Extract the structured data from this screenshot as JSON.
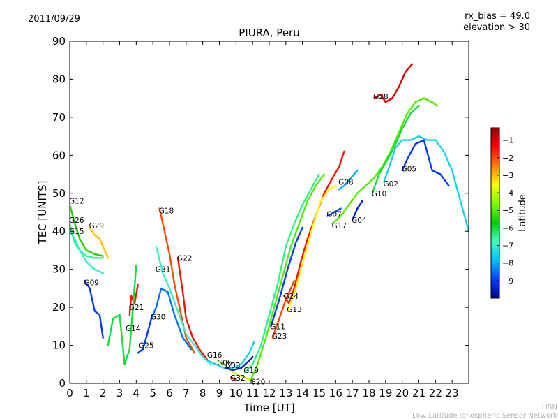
{
  "chart_data": {
    "type": "scatter",
    "title": "PIURA, Peru",
    "date": "2011/09/29",
    "info_lines": [
      "rx_bias = 49.0",
      "elevation > 30"
    ],
    "xlabel": "Time [UT]",
    "ylabel": "TEC [UNITS]",
    "xlim": [
      0,
      24
    ],
    "ylim": [
      0,
      90
    ],
    "xticks": [
      "0",
      "1",
      "2",
      "3",
      "4",
      "5",
      "6",
      "7",
      "8",
      "9",
      "10",
      "11",
      "12",
      "13",
      "14",
      "15",
      "16",
      "17",
      "18",
      "19",
      "20",
      "21",
      "22",
      "23"
    ],
    "yticks": [
      "0",
      "10",
      "20",
      "30",
      "40",
      "50",
      "60",
      "70",
      "80",
      "90"
    ],
    "grid": false,
    "colorbar": {
      "label": "Latitude",
      "min": -10,
      "max": -0.3,
      "ticks": [
        "-1",
        "-2",
        "-3",
        "-4",
        "-5",
        "-6",
        "-7",
        "-8",
        "-9"
      ],
      "colors": [
        "#00008f",
        "#0040ff",
        "#00c0ff",
        "#40ffbf",
        "#00d000",
        "#7fff00",
        "#ffff00",
        "#ff8000",
        "#ff0000",
        "#8f0000"
      ]
    },
    "series": [
      {
        "name": "G12",
        "label_at": [
          0,
          48
        ],
        "lat": -5.5,
        "points": [
          [
            0,
            47
          ],
          [
            0.3,
            42
          ],
          [
            0.6,
            38
          ],
          [
            1,
            35
          ],
          [
            1.5,
            34
          ],
          [
            2,
            33.5
          ]
        ]
      },
      {
        "name": "G26",
        "label_at": [
          0,
          43
        ],
        "lat": -6.5,
        "points": [
          [
            0,
            42
          ],
          [
            0.3,
            37
          ],
          [
            0.6,
            35
          ],
          [
            1,
            33.5
          ],
          [
            1.5,
            33
          ],
          [
            2,
            33
          ]
        ]
      },
      {
        "name": "G15",
        "label_at": [
          0,
          40
        ],
        "lat": -7,
        "points": [
          [
            0,
            40
          ],
          [
            0.3,
            38
          ],
          [
            0.6,
            35
          ],
          [
            1,
            32
          ],
          [
            1.5,
            30
          ],
          [
            2,
            29
          ]
        ]
      },
      {
        "name": "G29",
        "label_at": [
          1.2,
          41.5
        ],
        "lat": -3,
        "points": [
          [
            1.2,
            41
          ],
          [
            1.5,
            39
          ],
          [
            1.8,
            38
          ],
          [
            2,
            36
          ],
          [
            2.2,
            34
          ],
          [
            2.3,
            33
          ]
        ]
      },
      {
        "name": "G09",
        "label_at": [
          0.9,
          26.5
        ],
        "lat": -9,
        "points": [
          [
            0.9,
            27
          ],
          [
            1.2,
            25
          ],
          [
            1.5,
            19
          ],
          [
            1.8,
            18
          ],
          [
            2,
            12
          ]
        ]
      },
      {
        "name": "G18",
        "label_at": [
          5.4,
          45.5
        ],
        "lat": -2,
        "points": [
          [
            5.4,
            46
          ],
          [
            5.7,
            40
          ],
          [
            6,
            34
          ],
          [
            6.3,
            26
          ],
          [
            6.7,
            18
          ],
          [
            7,
            12
          ],
          [
            7.5,
            8
          ]
        ]
      },
      {
        "name": "G22",
        "label_at": [
          6.5,
          33
        ],
        "lat": -1.5,
        "points": [
          [
            6.5,
            33
          ],
          [
            6.8,
            24
          ],
          [
            7,
            17
          ],
          [
            7.4,
            12
          ],
          [
            7.8,
            9
          ],
          [
            8.3,
            6
          ]
        ]
      },
      {
        "name": "G31",
        "label_at": [
          5.2,
          30
        ],
        "lat": -7,
        "points": [
          [
            5.2,
            36
          ],
          [
            5.6,
            29
          ],
          [
            6,
            25
          ],
          [
            6.5,
            19
          ],
          [
            7,
            13
          ],
          [
            7.5,
            10
          ],
          [
            8,
            7
          ],
          [
            8.5,
            5
          ]
        ]
      },
      {
        "name": "G21",
        "label_at": [
          3.6,
          20
        ],
        "lat": -1.5,
        "points": [
          [
            3.6,
            18
          ],
          [
            3.7,
            23
          ],
          [
            3.9,
            21
          ],
          [
            4.1,
            26
          ]
        ]
      },
      {
        "name": "G30",
        "label_at": [
          4.9,
          17.5
        ],
        "lat": -8.5,
        "points": [
          [
            4.9,
            17
          ],
          [
            5.2,
            20
          ],
          [
            5.5,
            25
          ],
          [
            5.9,
            24
          ],
          [
            6.3,
            18
          ],
          [
            6.8,
            12
          ],
          [
            7.3,
            9
          ]
        ]
      },
      {
        "name": "G14",
        "label_at": [
          3.4,
          14.5
        ],
        "lat": -6,
        "points": [
          [
            2.3,
            10
          ],
          [
            2.6,
            17
          ],
          [
            3,
            18
          ],
          [
            3.3,
            5
          ],
          [
            3.6,
            9
          ],
          [
            4,
            31
          ]
        ]
      },
      {
        "name": "G25",
        "label_at": [
          4.2,
          10
        ],
        "lat": -9,
        "points": [
          [
            4.1,
            8
          ],
          [
            4.4,
            9
          ],
          [
            4.6,
            12
          ],
          [
            4.9,
            17
          ]
        ]
      },
      {
        "name": "G16",
        "label_at": [
          8.3,
          7.5
        ],
        "lat": -7.5,
        "points": [
          [
            8.3,
            6
          ],
          [
            8.8,
            5
          ],
          [
            9.3,
            4
          ],
          [
            9.8,
            4
          ],
          [
            10.3,
            5
          ],
          [
            10.8,
            8
          ],
          [
            11.1,
            11
          ]
        ]
      },
      {
        "name": "G06",
        "label_at": [
          8.9,
          5.5
        ],
        "lat": -4,
        "points": [
          [
            8.9,
            6
          ],
          [
            9.3,
            5
          ],
          [
            9.8,
            3
          ],
          [
            10.3,
            2
          ],
          [
            10.8,
            1
          ]
        ]
      },
      {
        "name": "G03",
        "label_at": [
          9.4,
          4.8
        ],
        "lat": -9.5,
        "points": [
          [
            9.4,
            4
          ],
          [
            9.8,
            3.5
          ],
          [
            10.3,
            4
          ],
          [
            10.8,
            6
          ],
          [
            11,
            7
          ]
        ]
      },
      {
        "name": "G32",
        "label_at": [
          9.7,
          1.5
        ],
        "lat": -1,
        "points": [
          [
            9.7,
            1.5
          ],
          [
            10,
            1
          ]
        ]
      },
      {
        "name": "G19",
        "label_at": [
          10.5,
          3.5
        ],
        "lat": -6.5,
        "points": [
          [
            10.5,
            3
          ],
          [
            11,
            5
          ],
          [
            11.5,
            10
          ],
          [
            12,
            18
          ],
          [
            12.5,
            26
          ],
          [
            13,
            36
          ],
          [
            13.5,
            42
          ],
          [
            14,
            47
          ],
          [
            14.5,
            51
          ],
          [
            15,
            55
          ]
        ]
      },
      {
        "name": "G20",
        "label_at": [
          10.9,
          0.5
        ],
        "lat": -5,
        "points": [
          [
            10.9,
            1
          ],
          [
            11.3,
            5
          ],
          [
            11.8,
            12
          ],
          [
            12.3,
            20
          ],
          [
            12.8,
            28
          ],
          [
            13.3,
            36
          ],
          [
            13.8,
            42
          ],
          [
            14.3,
            48
          ],
          [
            14.8,
            52
          ],
          [
            15.3,
            55
          ]
        ]
      },
      {
        "name": "G11",
        "label_at": [
          12.1,
          15
        ],
        "lat": -9,
        "points": [
          [
            12.1,
            15
          ],
          [
            12.6,
            22
          ],
          [
            13.1,
            30
          ],
          [
            13.6,
            37
          ],
          [
            14,
            41
          ]
        ]
      },
      {
        "name": "G23",
        "label_at": [
          12.2,
          12.5
        ],
        "lat": -2,
        "points": [
          [
            12.2,
            12
          ],
          [
            12.6,
            17
          ],
          [
            13,
            22
          ],
          [
            13.5,
            27
          ]
        ]
      },
      {
        "name": "G24",
        "label_at": [
          12.9,
          23
        ],
        "lat": -1.5,
        "points": [
          [
            12.9,
            23
          ],
          [
            13.2,
            21
          ],
          [
            13.5,
            25
          ],
          [
            13.9,
            32
          ],
          [
            14.3,
            38
          ],
          [
            14.8,
            44
          ],
          [
            15.3,
            50
          ],
          [
            15.8,
            54
          ],
          [
            16.2,
            57
          ],
          [
            16.5,
            61
          ]
        ]
      },
      {
        "name": "G13",
        "label_at": [
          13.1,
          19.5
        ],
        "lat": -3.5,
        "points": [
          [
            13.1,
            19
          ],
          [
            13.6,
            25
          ],
          [
            14.1,
            33
          ],
          [
            14.6,
            41
          ],
          [
            15.1,
            48
          ],
          [
            15.6,
            51
          ],
          [
            16,
            52
          ]
        ]
      },
      {
        "name": "G07",
        "label_at": [
          15.5,
          44.5
        ],
        "lat": -9,
        "points": [
          [
            15.5,
            44
          ],
          [
            15.9,
            45
          ],
          [
            16.3,
            46
          ]
        ]
      },
      {
        "name": "G08",
        "label_at": [
          16.2,
          53
        ],
        "lat": -8,
        "points": [
          [
            16.2,
            51
          ],
          [
            16.5,
            52
          ],
          [
            16.9,
            54
          ],
          [
            17.3,
            56
          ]
        ]
      },
      {
        "name": "G17",
        "label_at": [
          15.8,
          41.5
        ],
        "lat": -5,
        "points": [
          [
            15.8,
            42
          ],
          [
            16.3,
            44
          ],
          [
            16.8,
            47
          ],
          [
            17.3,
            50
          ],
          [
            17.8,
            52
          ],
          [
            18.3,
            54
          ],
          [
            18.8,
            57
          ],
          [
            19.3,
            61
          ],
          [
            19.8,
            66
          ],
          [
            20.3,
            71
          ],
          [
            20.8,
            74
          ],
          [
            21.3,
            75
          ],
          [
            21.8,
            74
          ],
          [
            22.1,
            73
          ]
        ]
      },
      {
        "name": "G04",
        "label_at": [
          17,
          43
        ],
        "lat": -9.5,
        "points": [
          [
            17,
            43
          ],
          [
            17.3,
            46
          ],
          [
            17.6,
            48
          ]
        ]
      },
      {
        "name": "G10",
        "label_at": [
          18.2,
          50
        ],
        "lat": -6,
        "points": [
          [
            18.2,
            50
          ],
          [
            18.6,
            55
          ],
          [
            19,
            58
          ],
          [
            19.5,
            62
          ],
          [
            20,
            67
          ],
          [
            20.5,
            71
          ],
          [
            21,
            73
          ]
        ]
      },
      {
        "name": "G02",
        "label_at": [
          18.9,
          52.5
        ],
        "lat": -7.5,
        "points": [
          [
            18.9,
            53
          ],
          [
            19.3,
            58
          ],
          [
            19.6,
            62
          ],
          [
            20,
            64
          ],
          [
            20.5,
            64
          ],
          [
            21,
            65
          ],
          [
            21.5,
            64
          ],
          [
            22,
            64
          ],
          [
            22.5,
            61
          ],
          [
            23,
            56
          ],
          [
            23.5,
            48
          ],
          [
            24,
            40
          ]
        ]
      },
      {
        "name": "G28",
        "label_at": [
          18.3,
          75.5
        ],
        "lat": -1,
        "points": [
          [
            18.3,
            75
          ],
          [
            18.7,
            76
          ],
          [
            19,
            74
          ],
          [
            19.4,
            75
          ],
          [
            19.8,
            78
          ],
          [
            20.2,
            82
          ],
          [
            20.6,
            84
          ]
        ]
      },
      {
        "name": "G05",
        "label_at": [
          20,
          56.5
        ],
        "lat": -9,
        "points": [
          [
            20,
            56
          ],
          [
            20.3,
            59
          ],
          [
            20.8,
            63
          ],
          [
            21.3,
            64
          ],
          [
            21.8,
            56
          ],
          [
            22.3,
            55
          ],
          [
            22.8,
            52
          ]
        ]
      }
    ]
  },
  "credits": {
    "line1": "LISN",
    "line2": "Low-Latitude Ionospheric Sensor Network"
  }
}
